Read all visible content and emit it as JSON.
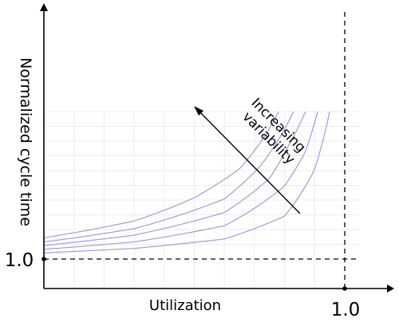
{
  "chart_data": {
    "type": "line",
    "title": "",
    "xlabel": "Utilization",
    "ylabel": "Normalized cycle time",
    "xlim": [
      0,
      1.05
    ],
    "ylim": [
      0,
      6
    ],
    "grid": true,
    "x_tick_label": "1.0",
    "y_tick_label": "1.0",
    "reference_x": 1.0,
    "reference_y": 1.0,
    "annotation": "Increasing variability",
    "series": [
      {
        "x": [
          0,
          0.3,
          0.6,
          0.8,
          0.9,
          0.95
        ],
        "y": [
          1.21,
          1.36,
          1.68,
          2.46,
          4.04,
          6.0
        ]
      },
      {
        "x": [
          0,
          0.3,
          0.6,
          0.8,
          0.87,
          0.91
        ],
        "y": [
          1.33,
          1.58,
          2.13,
          3.48,
          4.66,
          6.0
        ]
      },
      {
        "x": [
          0,
          0.3,
          0.6,
          0.75,
          0.82,
          0.87
        ],
        "y": [
          1.46,
          1.81,
          2.58,
          3.74,
          4.98,
          6.0
        ]
      },
      {
        "x": [
          0,
          0.3,
          0.6,
          0.72,
          0.78,
          0.83
        ],
        "y": [
          1.58,
          2.03,
          3.04,
          4.16,
          5.05,
          6.0
        ]
      },
      {
        "x": [
          0,
          0.3,
          0.5,
          0.65,
          0.73,
          0.78
        ],
        "y": [
          1.72,
          2.29,
          3.08,
          4.06,
          5.1,
          6.0
        ]
      }
    ]
  }
}
